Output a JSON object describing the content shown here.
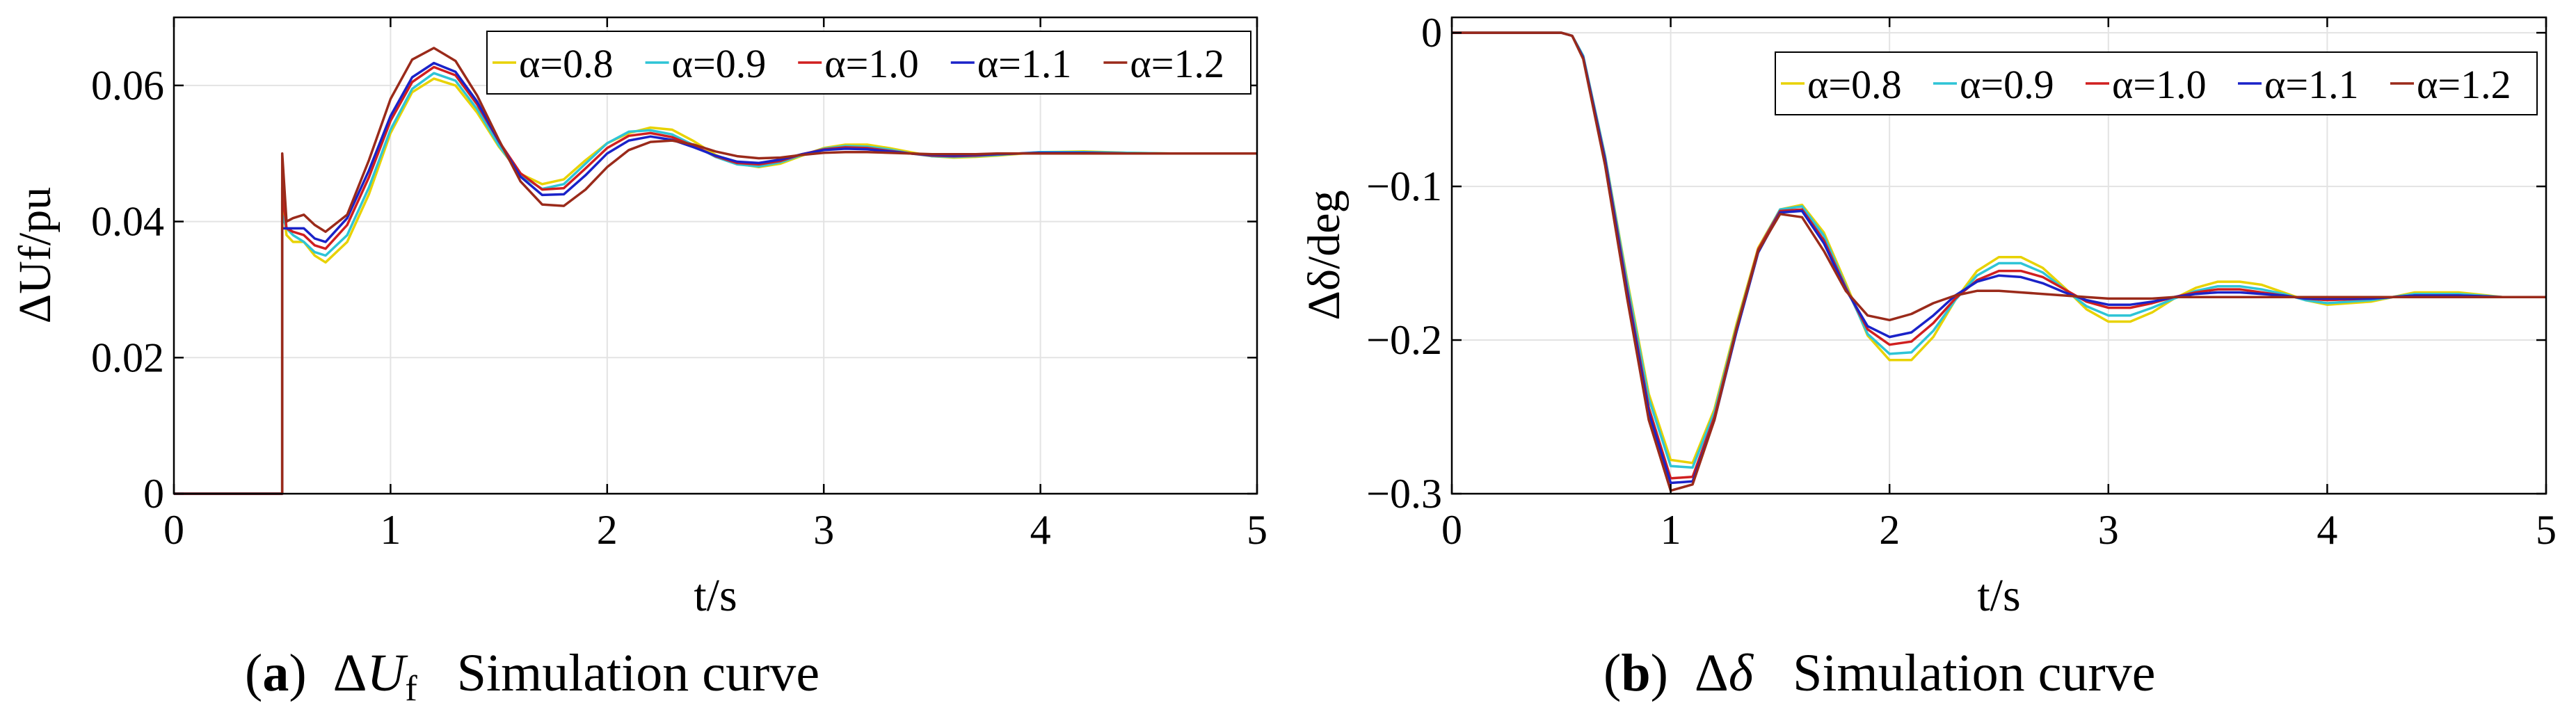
{
  "chart_data": [
    {
      "type": "line",
      "panel": "a",
      "caption": {
        "tag_open": "(",
        "tag": "a",
        "tag_close": ")",
        "delta": "Δ",
        "symbol": "U",
        "subscript": "f",
        "text": "Simulation curve"
      },
      "xlabel": "t/s",
      "ylabel": "ΔUf/pu",
      "xlim": [
        0,
        5
      ],
      "ylim": [
        0,
        0.07
      ],
      "xticks": [
        0,
        1,
        2,
        3,
        4,
        5
      ],
      "xtick_labels": [
        "0",
        "1",
        "2",
        "3",
        "4",
        "5"
      ],
      "yticks": [
        0,
        0.02,
        0.04,
        0.06
      ],
      "ytick_labels": [
        "0",
        "0.02",
        "0.04",
        "0.06"
      ],
      "grid": true,
      "legend_position": "top-right",
      "series": [
        {
          "name": "α=0.8",
          "color": "#e8d200",
          "x": [
            0,
            0.5,
            0.5,
            0.52,
            0.55,
            0.6,
            0.65,
            0.7,
            0.8,
            0.9,
            1.0,
            1.1,
            1.2,
            1.3,
            1.4,
            1.5,
            1.6,
            1.7,
            1.8,
            1.9,
            2.0,
            2.1,
            2.2,
            2.3,
            2.4,
            2.5,
            2.6,
            2.7,
            2.8,
            2.9,
            3.0,
            3.1,
            3.2,
            3.3,
            3.4,
            3.5,
            3.6,
            3.7,
            3.8,
            4.0,
            4.2,
            4.4,
            4.6,
            4.8,
            5.0
          ],
          "y": [
            0,
            0,
            0.043,
            0.038,
            0.037,
            0.037,
            0.035,
            0.034,
            0.037,
            0.044,
            0.053,
            0.059,
            0.061,
            0.06,
            0.056,
            0.051,
            0.047,
            0.0455,
            0.0462,
            0.049,
            0.0515,
            0.053,
            0.0538,
            0.0535,
            0.0518,
            0.0498,
            0.0485,
            0.048,
            0.0485,
            0.0497,
            0.0508,
            0.0513,
            0.0513,
            0.0508,
            0.0502,
            0.0496,
            0.0494,
            0.0495,
            0.0497,
            0.0502,
            0.0503,
            0.0501,
            0.05,
            0.05,
            0.05
          ]
        },
        {
          "name": "α=0.9",
          "color": "#2ec4d6",
          "x": [
            0,
            0.5,
            0.5,
            0.52,
            0.55,
            0.6,
            0.65,
            0.7,
            0.8,
            0.9,
            1.0,
            1.1,
            1.2,
            1.3,
            1.4,
            1.5,
            1.6,
            1.7,
            1.8,
            1.9,
            2.0,
            2.1,
            2.2,
            2.3,
            2.4,
            2.5,
            2.6,
            2.7,
            2.8,
            2.9,
            3.0,
            3.1,
            3.2,
            3.3,
            3.4,
            3.5,
            3.6,
            3.7,
            3.8,
            4.0,
            4.2,
            4.4,
            4.6,
            4.8,
            5.0
          ],
          "y": [
            0,
            0,
            0.041,
            0.039,
            0.038,
            0.037,
            0.0355,
            0.035,
            0.038,
            0.045,
            0.0535,
            0.0595,
            0.0618,
            0.0607,
            0.0565,
            0.0512,
            0.0468,
            0.0448,
            0.0455,
            0.0485,
            0.0515,
            0.0532,
            0.0534,
            0.0528,
            0.0512,
            0.0495,
            0.0484,
            0.0481,
            0.0487,
            0.0498,
            0.0507,
            0.0511,
            0.051,
            0.0506,
            0.05,
            0.0496,
            0.0495,
            0.0496,
            0.0498,
            0.0502,
            0.0502,
            0.0501,
            0.05,
            0.05,
            0.05
          ]
        },
        {
          "name": "α=1.0",
          "color": "#d01f1f",
          "x": [
            0,
            0.5,
            0.5,
            0.52,
            0.55,
            0.6,
            0.65,
            0.7,
            0.8,
            0.9,
            1.0,
            1.1,
            1.2,
            1.3,
            1.4,
            1.5,
            1.6,
            1.7,
            1.8,
            1.9,
            2.0,
            2.1,
            2.2,
            2.3,
            2.4,
            2.5,
            2.6,
            2.7,
            2.8,
            2.9,
            3.0,
            3.1,
            3.2,
            3.3,
            3.4,
            3.5,
            3.6,
            3.7,
            3.8,
            4.0,
            4.2,
            4.4,
            4.6,
            4.8,
            5.0
          ],
          "y": [
            0,
            0,
            0.045,
            0.039,
            0.0385,
            0.038,
            0.0365,
            0.036,
            0.0395,
            0.0465,
            0.0548,
            0.0605,
            0.0627,
            0.0615,
            0.0572,
            0.0518,
            0.0471,
            0.0447,
            0.0449,
            0.0478,
            0.0508,
            0.0526,
            0.053,
            0.0524,
            0.0511,
            0.0496,
            0.0486,
            0.0484,
            0.0489,
            0.0499,
            0.0506,
            0.0509,
            0.0508,
            0.0504,
            0.05,
            0.0497,
            0.0496,
            0.0497,
            0.0499,
            0.0501,
            0.0501,
            0.05,
            0.05,
            0.05,
            0.05
          ]
        },
        {
          "name": "α=1.1",
          "color": "#1a22c8",
          "x": [
            0,
            0.5,
            0.5,
            0.52,
            0.55,
            0.6,
            0.65,
            0.7,
            0.8,
            0.9,
            1.0,
            1.1,
            1.2,
            1.3,
            1.4,
            1.5,
            1.6,
            1.7,
            1.8,
            1.9,
            2.0,
            2.1,
            2.2,
            2.3,
            2.4,
            2.5,
            2.6,
            2.7,
            2.8,
            2.9,
            3.0,
            3.1,
            3.2,
            3.3,
            3.4,
            3.5,
            3.6,
            3.7,
            3.8,
            4.0,
            4.2,
            4.4,
            4.6,
            4.8,
            5.0
          ],
          "y": [
            0,
            0,
            0.039,
            0.039,
            0.039,
            0.039,
            0.0375,
            0.037,
            0.0405,
            0.0475,
            0.0555,
            0.0612,
            0.0633,
            0.062,
            0.0576,
            0.0518,
            0.0466,
            0.0439,
            0.044,
            0.0468,
            0.05,
            0.0519,
            0.0525,
            0.052,
            0.0509,
            0.0497,
            0.0488,
            0.0486,
            0.0491,
            0.0499,
            0.0505,
            0.0507,
            0.0506,
            0.0503,
            0.05,
            0.0498,
            0.0497,
            0.0498,
            0.0499,
            0.0501,
            0.0501,
            0.05,
            0.05,
            0.05,
            0.05
          ]
        },
        {
          "name": "α=1.2",
          "color": "#9a2a1a",
          "x": [
            0,
            0.5,
            0.5,
            0.52,
            0.55,
            0.6,
            0.65,
            0.7,
            0.8,
            0.9,
            1.0,
            1.1,
            1.2,
            1.3,
            1.4,
            1.5,
            1.6,
            1.7,
            1.8,
            1.9,
            2.0,
            2.1,
            2.2,
            2.3,
            2.4,
            2.5,
            2.6,
            2.7,
            2.8,
            2.9,
            3.0,
            3.1,
            3.2,
            3.3,
            3.4,
            3.5,
            3.6,
            3.7,
            3.8,
            4.0,
            4.2,
            4.4,
            4.6,
            4.8,
            5.0
          ],
          "y": [
            0,
            0,
            0.05,
            0.04,
            0.0405,
            0.041,
            0.0395,
            0.0385,
            0.041,
            0.049,
            0.058,
            0.0638,
            0.0655,
            0.0636,
            0.0585,
            0.052,
            0.0459,
            0.0425,
            0.0423,
            0.0447,
            0.048,
            0.0505,
            0.0517,
            0.0519,
            0.0513,
            0.0503,
            0.0496,
            0.0493,
            0.0494,
            0.0498,
            0.0501,
            0.0502,
            0.0502,
            0.0501,
            0.05,
            0.0499,
            0.0499,
            0.0499,
            0.05,
            0.05,
            0.05,
            0.05,
            0.05,
            0.05,
            0.05
          ]
        }
      ]
    },
    {
      "type": "line",
      "panel": "b",
      "caption": {
        "tag_open": "(",
        "tag": "b",
        "tag_close": ")",
        "delta": "Δ",
        "symbol": "δ",
        "text": "Simulation curve"
      },
      "xlabel": "t/s",
      "ylabel": "Δδ/deg",
      "xlim": [
        0,
        5
      ],
      "ylim": [
        -0.3,
        0.01
      ],
      "xticks": [
        0,
        1,
        2,
        3,
        4,
        5
      ],
      "xtick_labels": [
        "0",
        "1",
        "2",
        "3",
        "4",
        "5"
      ],
      "yticks": [
        -0.3,
        -0.2,
        -0.1,
        0
      ],
      "ytick_labels": [
        "−0.3",
        "−0.2",
        "−0.1",
        "0"
      ],
      "grid": true,
      "legend_position": "top-right",
      "series": [
        {
          "name": "α=0.8",
          "color": "#e8d200",
          "x": [
            0,
            0.5,
            0.55,
            0.6,
            0.7,
            0.8,
            0.9,
            1.0,
            1.1,
            1.2,
            1.3,
            1.4,
            1.5,
            1.6,
            1.7,
            1.8,
            1.9,
            2.0,
            2.1,
            2.2,
            2.3,
            2.4,
            2.5,
            2.6,
            2.7,
            2.8,
            2.9,
            3.0,
            3.1,
            3.2,
            3.3,
            3.4,
            3.5,
            3.6,
            3.7,
            3.8,
            3.9,
            4.0,
            4.2,
            4.4,
            4.6,
            4.8,
            5.0
          ],
          "y": [
            0,
            0,
            -0.002,
            -0.015,
            -0.08,
            -0.16,
            -0.235,
            -0.278,
            -0.28,
            -0.245,
            -0.19,
            -0.14,
            -0.115,
            -0.112,
            -0.13,
            -0.163,
            -0.197,
            -0.213,
            -0.213,
            -0.198,
            -0.174,
            -0.155,
            -0.146,
            -0.146,
            -0.153,
            -0.166,
            -0.18,
            -0.188,
            -0.188,
            -0.182,
            -0.173,
            -0.166,
            -0.162,
            -0.162,
            -0.164,
            -0.169,
            -0.174,
            -0.177,
            -0.175,
            -0.169,
            -0.169,
            -0.172,
            -0.172
          ]
        },
        {
          "name": "α=0.9",
          "color": "#2ec4d6",
          "x": [
            0,
            0.5,
            0.55,
            0.6,
            0.7,
            0.8,
            0.9,
            1.0,
            1.1,
            1.2,
            1.3,
            1.4,
            1.5,
            1.6,
            1.7,
            1.8,
            1.9,
            2.0,
            2.1,
            2.2,
            2.3,
            2.4,
            2.5,
            2.6,
            2.7,
            2.8,
            2.9,
            3.0,
            3.1,
            3.2,
            3.3,
            3.4,
            3.5,
            3.6,
            3.7,
            3.8,
            3.9,
            4.0,
            4.2,
            4.4,
            4.6,
            4.8,
            5.0
          ],
          "y": [
            0,
            0,
            -0.002,
            -0.015,
            -0.08,
            -0.162,
            -0.238,
            -0.282,
            -0.283,
            -0.247,
            -0.192,
            -0.141,
            -0.115,
            -0.113,
            -0.132,
            -0.165,
            -0.196,
            -0.209,
            -0.208,
            -0.194,
            -0.174,
            -0.158,
            -0.15,
            -0.15,
            -0.156,
            -0.167,
            -0.178,
            -0.184,
            -0.184,
            -0.179,
            -0.173,
            -0.168,
            -0.165,
            -0.165,
            -0.167,
            -0.17,
            -0.174,
            -0.176,
            -0.174,
            -0.17,
            -0.17,
            -0.172,
            -0.172
          ]
        },
        {
          "name": "α=1.0",
          "color": "#d01f1f",
          "x": [
            0,
            0.5,
            0.55,
            0.6,
            0.7,
            0.8,
            0.9,
            1.0,
            1.1,
            1.2,
            1.3,
            1.4,
            1.5,
            1.6,
            1.7,
            1.8,
            1.9,
            2.0,
            2.1,
            2.2,
            2.3,
            2.4,
            2.5,
            2.6,
            2.7,
            2.8,
            2.9,
            3.0,
            3.1,
            3.2,
            3.3,
            3.4,
            3.5,
            3.6,
            3.7,
            3.8,
            3.9,
            4.0,
            4.2,
            4.4,
            4.6,
            4.8,
            5.0
          ],
          "y": [
            0,
            0,
            -0.002,
            -0.016,
            -0.082,
            -0.166,
            -0.244,
            -0.29,
            -0.289,
            -0.25,
            -0.193,
            -0.141,
            -0.116,
            -0.115,
            -0.135,
            -0.166,
            -0.193,
            -0.203,
            -0.201,
            -0.189,
            -0.173,
            -0.161,
            -0.155,
            -0.155,
            -0.159,
            -0.167,
            -0.175,
            -0.179,
            -0.179,
            -0.176,
            -0.172,
            -0.169,
            -0.167,
            -0.167,
            -0.169,
            -0.171,
            -0.173,
            -0.174,
            -0.173,
            -0.171,
            -0.171,
            -0.172,
            -0.172
          ]
        },
        {
          "name": "α=1.1",
          "color": "#1a22c8",
          "x": [
            0,
            0.5,
            0.55,
            0.6,
            0.7,
            0.8,
            0.9,
            1.0,
            1.1,
            1.2,
            1.3,
            1.4,
            1.5,
            1.6,
            1.7,
            1.8,
            1.9,
            2.0,
            2.1,
            2.2,
            2.3,
            2.4,
            2.5,
            2.6,
            2.7,
            2.8,
            2.9,
            3.0,
            3.1,
            3.2,
            3.3,
            3.4,
            3.5,
            3.6,
            3.7,
            3.8,
            3.9,
            4.0,
            4.2,
            4.4,
            4.6,
            4.8,
            5.0
          ],
          "y": [
            0,
            0,
            -0.002,
            -0.016,
            -0.083,
            -0.168,
            -0.247,
            -0.293,
            -0.292,
            -0.252,
            -0.195,
            -0.143,
            -0.117,
            -0.116,
            -0.137,
            -0.167,
            -0.191,
            -0.198,
            -0.195,
            -0.184,
            -0.171,
            -0.162,
            -0.158,
            -0.159,
            -0.163,
            -0.169,
            -0.174,
            -0.177,
            -0.177,
            -0.175,
            -0.172,
            -0.17,
            -0.169,
            -0.169,
            -0.17,
            -0.171,
            -0.173,
            -0.173,
            -0.173,
            -0.171,
            -0.171,
            -0.172,
            -0.172
          ]
        },
        {
          "name": "α=1.2",
          "color": "#9a2a1a",
          "x": [
            0,
            0.5,
            0.55,
            0.6,
            0.7,
            0.8,
            0.9,
            1.0,
            1.1,
            1.2,
            1.3,
            1.4,
            1.5,
            1.6,
            1.7,
            1.8,
            1.9,
            2.0,
            2.1,
            2.2,
            2.3,
            2.4,
            2.5,
            2.6,
            2.7,
            2.8,
            2.9,
            3.0,
            3.1,
            3.2,
            3.3,
            3.4,
            3.5,
            3.6,
            3.7,
            3.8,
            3.9,
            4.0,
            4.2,
            4.4,
            4.6,
            4.8,
            5.0
          ],
          "y": [
            0,
            0,
            -0.002,
            -0.017,
            -0.086,
            -0.172,
            -0.252,
            -0.298,
            -0.294,
            -0.252,
            -0.193,
            -0.142,
            -0.118,
            -0.12,
            -0.142,
            -0.168,
            -0.184,
            -0.187,
            -0.183,
            -0.176,
            -0.171,
            -0.168,
            -0.168,
            -0.169,
            -0.17,
            -0.171,
            -0.172,
            -0.173,
            -0.173,
            -0.173,
            -0.172,
            -0.172,
            -0.172,
            -0.172,
            -0.172,
            -0.172,
            -0.172,
            -0.172,
            -0.172,
            -0.172,
            -0.172,
            -0.172,
            -0.172
          ]
        }
      ]
    }
  ]
}
